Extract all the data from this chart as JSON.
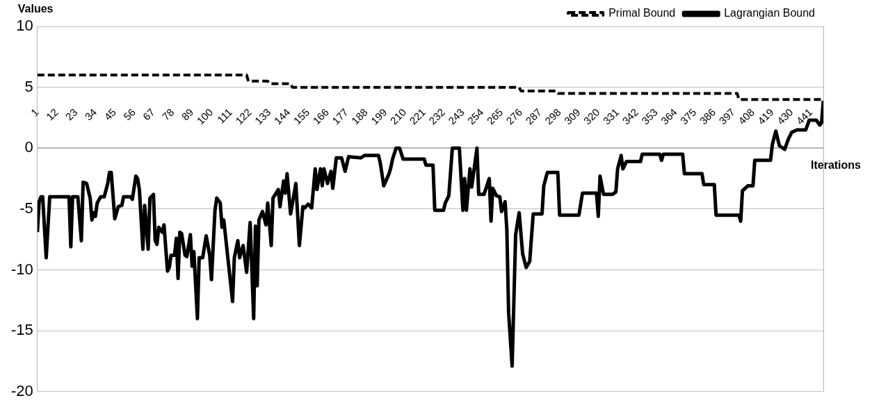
{
  "chart_data": {
    "type": "line",
    "xlabel": "Iterations",
    "ylabel": "Values",
    "xlim": [
      1,
      448
    ],
    "xticks": [
      1,
      12,
      23,
      34,
      45,
      56,
      67,
      78,
      89,
      100,
      111,
      122,
      133,
      144,
      155,
      166,
      177,
      188,
      199,
      210,
      221,
      232,
      243,
      254,
      265,
      276,
      287,
      298,
      309,
      320,
      331,
      342,
      353,
      364,
      375,
      386,
      397,
      408,
      419,
      430,
      441
    ],
    "ylim": [
      -20,
      10
    ],
    "yticks": [
      -20,
      -15,
      -10,
      -5,
      0,
      5,
      10
    ],
    "grid": "y",
    "legend": "top right",
    "marker": "none",
    "series": [
      {
        "name": "Primal Bound",
        "color": "#000000",
        "line_style": "dashed",
        "x": [
          1,
          120,
          121,
          132,
          133,
          145,
          146,
          275,
          276,
          296,
          297,
          399,
          400,
          448
        ],
        "values": [
          6,
          6,
          5.5,
          5.5,
          5.3,
          5.3,
          5,
          5,
          4.7,
          4.7,
          4.5,
          4.5,
          4,
          4
        ]
      },
      {
        "name": "Lagrangian Bound",
        "color": "#000000",
        "line_style": "solid",
        "x": [
          1,
          2,
          3,
          4,
          6,
          8,
          19,
          20,
          21,
          24,
          26,
          27,
          29,
          31,
          32,
          33,
          34,
          35,
          37,
          39,
          41,
          42,
          43,
          45,
          47,
          49,
          50,
          54,
          55,
          57,
          58,
          59,
          61,
          62,
          64,
          65,
          67,
          68,
          69,
          70,
          72,
          73,
          75,
          76,
          77,
          79,
          80,
          81,
          82,
          83,
          85,
          86,
          88,
          89,
          90,
          92,
          93,
          95,
          97,
          99,
          100,
          102,
          103,
          105,
          106,
          107,
          112,
          113,
          115,
          116,
          118,
          120,
          122,
          124,
          125,
          126,
          127,
          129,
          131,
          132,
          134,
          135,
          138,
          139,
          141,
          142,
          143,
          145,
          148,
          150,
          152,
          153,
          155,
          157,
          159,
          160,
          162,
          163,
          164,
          166,
          168,
          169,
          171,
          174,
          176,
          178,
          185,
          187,
          195,
          196,
          198,
          201,
          202,
          203,
          205,
          207,
          209,
          221,
          222,
          226,
          227,
          232,
          233,
          235,
          237,
          241,
          243,
          244,
          245,
          247,
          248,
          251,
          252,
          255,
          258,
          259,
          260,
          262,
          264,
          265,
          267,
          268,
          269,
          271,
          273,
          275,
          277,
          279,
          281,
          283,
          288,
          289,
          291,
          297,
          298,
          309,
          311,
          319,
          320,
          321,
          323,
          328,
          330,
          331,
          333,
          334,
          336,
          344,
          345,
          355,
          356,
          357,
          368,
          369,
          379,
          380,
          386,
          387,
          400,
          401,
          402,
          405,
          408,
          409,
          418,
          419,
          421,
          423,
          426,
          428,
          430,
          433,
          438,
          440,
          444,
          446,
          447,
          448
        ],
        "values": [
          -6.9,
          -4.4,
          -4.0,
          -4.0,
          -9.0,
          -4.0,
          -4.0,
          -8.1,
          -4.0,
          -4.0,
          -7.6,
          -2.8,
          -2.9,
          -4.1,
          -5.9,
          -5.3,
          -5.6,
          -4.5,
          -4.0,
          -4.0,
          -2.9,
          -2.0,
          -2.0,
          -5.8,
          -4.8,
          -4.7,
          -4.0,
          -4.0,
          -4.2,
          -2.3,
          -2.5,
          -3.4,
          -8.3,
          -4.7,
          -8.3,
          -4.1,
          -3.8,
          -7.6,
          -7.9,
          -6.5,
          -6.9,
          -6.3,
          -10.1,
          -9.8,
          -8.8,
          -8.8,
          -7.4,
          -10.7,
          -6.9,
          -7.0,
          -8.8,
          -8.9,
          -7.1,
          -9.7,
          -8.5,
          -14.0,
          -9.0,
          -9.0,
          -7.2,
          -8.8,
          -10.8,
          -5.1,
          -4.1,
          -4.5,
          -6.5,
          -5.9,
          -12.6,
          -9.0,
          -7.6,
          -9.0,
          -8.0,
          -10.2,
          -6.1,
          -14.0,
          -6.4,
          -11.3,
          -5.9,
          -5.2,
          -6.3,
          -4.5,
          -8.0,
          -4.1,
          -3.4,
          -4.8,
          -2.7,
          -3.7,
          -2.1,
          -5.4,
          -2.9,
          -8.0,
          -4.8,
          -4.9,
          -4.6,
          -4.9,
          -1.7,
          -3.4,
          -1.7,
          -3.1,
          -1.7,
          -2.9,
          -1.9,
          -3.3,
          -0.8,
          -0.8,
          -1.9,
          -0.7,
          -0.8,
          -0.6,
          -0.6,
          -1.2,
          -3.1,
          -2.1,
          -1.6,
          -0.9,
          0,
          0,
          -0.9,
          -0.9,
          -1.4,
          -1.4,
          -5.1,
          -5.1,
          -4.5,
          -3.9,
          0,
          0,
          -5.1,
          -2.5,
          -5.1,
          -1.7,
          -3.2,
          0,
          -3.8,
          -3.8,
          -2.5,
          -6.0,
          -3.3,
          -3.9,
          -4.0,
          -5.2,
          -4.4,
          -6.7,
          -13.5,
          -17.9,
          -7.1,
          -5.3,
          -8.7,
          -9.8,
          -9.3,
          -5.4,
          -5.4,
          -3.1,
          -2.0,
          -2.0,
          -5.5,
          -5.5,
          -3.7,
          -3.7,
          -5.6,
          -2.3,
          -3.8,
          -3.8,
          -3.6,
          -1.7,
          -0.6,
          -1.7,
          -1.1,
          -1.1,
          -0.5,
          -0.5,
          -1.0,
          -0.5,
          -0.5,
          -2.1,
          -2.1,
          -3.0,
          -3.0,
          -5.5,
          -5.5,
          -6.0,
          -3.5,
          -3.1,
          -3.1,
          -1.0,
          -1.0,
          0.3,
          1.4,
          0.2,
          -0.1,
          0.7,
          1.3,
          1.5,
          1.5,
          2.3,
          2.3,
          1.9,
          2.1,
          3.9
        ]
      }
    ]
  }
}
